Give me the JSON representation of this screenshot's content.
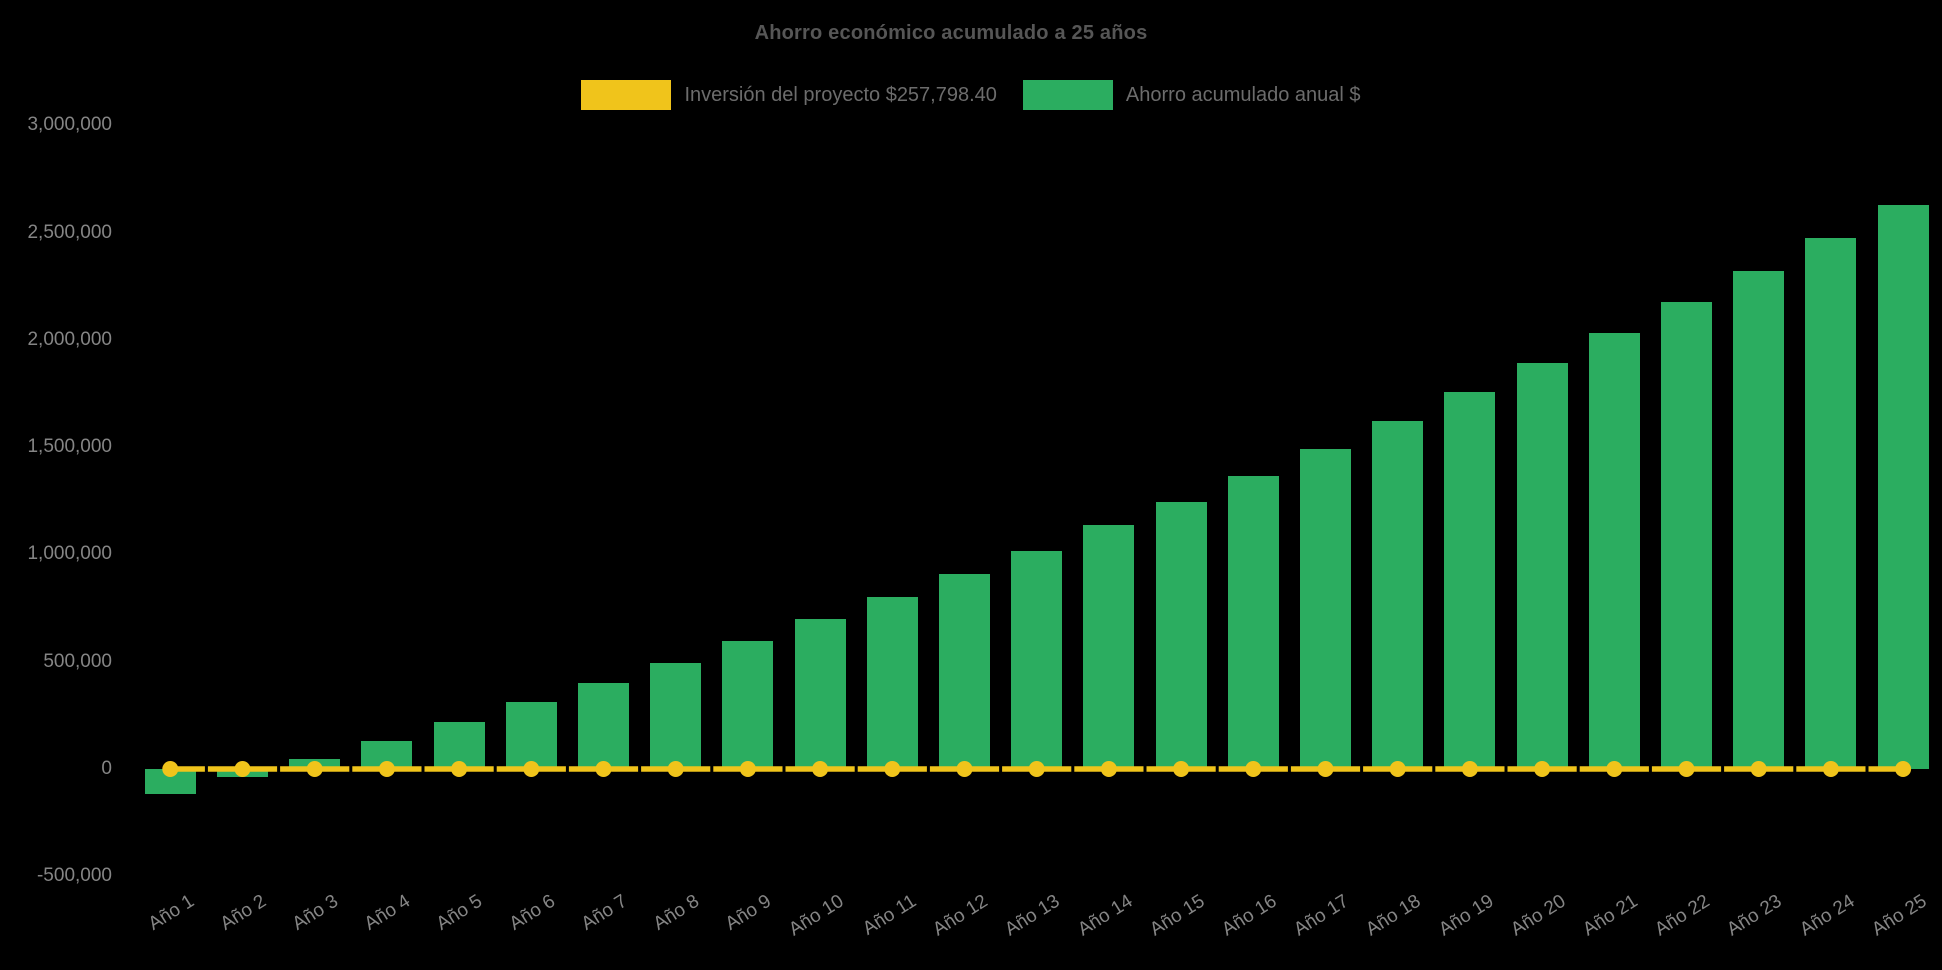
{
  "title": "Ahorro económico acumulado a 25 años",
  "background_color": "#000000",
  "text_colors": {
    "title": "#565656",
    "legend": "#6c6c6c",
    "ticks": "#858585"
  },
  "legend": {
    "position": "top",
    "items": [
      {
        "label": "Inversión del proyecto $257,798.40",
        "color": "#F0C41B",
        "series_type": "line"
      },
      {
        "label": "Ahorro acumulado anual $",
        "color": "#2BAD60",
        "series_type": "bar"
      }
    ]
  },
  "chart_data": {
    "type": "bar",
    "title": "Ahorro económico acumulado a 25 años",
    "xlabel": "",
    "ylabel": "",
    "categories": [
      "Año 1",
      "Año 2",
      "Año 3",
      "Año 4",
      "Año 5",
      "Año 6",
      "Año 7",
      "Año 8",
      "Año 9",
      "Año 10",
      "Año 11",
      "Año 12",
      "Año 13",
      "Año 14",
      "Año 15",
      "Año 16",
      "Año 17",
      "Año 18",
      "Año 19",
      "Año 20",
      "Año 21",
      "Año 22",
      "Año 23",
      "Año 24",
      "Año 25"
    ],
    "series": [
      {
        "name": "Ahorro acumulado anual $",
        "type": "bar",
        "color": "#2BAD60",
        "values": [
          -115000,
          -35000,
          48000,
          130000,
          220000,
          310000,
          400000,
          495000,
          595000,
          700000,
          800000,
          910000,
          1015000,
          1135000,
          1245000,
          1365000,
          1490000,
          1620000,
          1755000,
          1890000,
          2030000,
          2175000,
          2320000,
          2475000,
          2630000
        ]
      },
      {
        "name": "Inversión del proyecto $257,798.40",
        "type": "line",
        "color": "#F0C41B",
        "point_markers": true,
        "values": [
          0,
          0,
          0,
          0,
          0,
          0,
          0,
          0,
          0,
          0,
          0,
          0,
          0,
          0,
          0,
          0,
          0,
          0,
          0,
          0,
          0,
          0,
          0,
          0,
          0
        ],
        "note": "flat line with round markers drawn along the zero baseline"
      }
    ],
    "ylim": [
      -500000,
      3000000
    ],
    "y_ticks": [
      3000000,
      2500000,
      2000000,
      1500000,
      1000000,
      500000,
      0,
      -500000
    ],
    "y_tick_labels": [
      "3,000,000",
      "2,500,000",
      "2,000,000",
      "1,500,000",
      "1,000,000",
      "500,000",
      "0",
      "-500,000"
    ],
    "x_tick_rotation_deg": -32,
    "grid": false,
    "legend_position": "top"
  }
}
